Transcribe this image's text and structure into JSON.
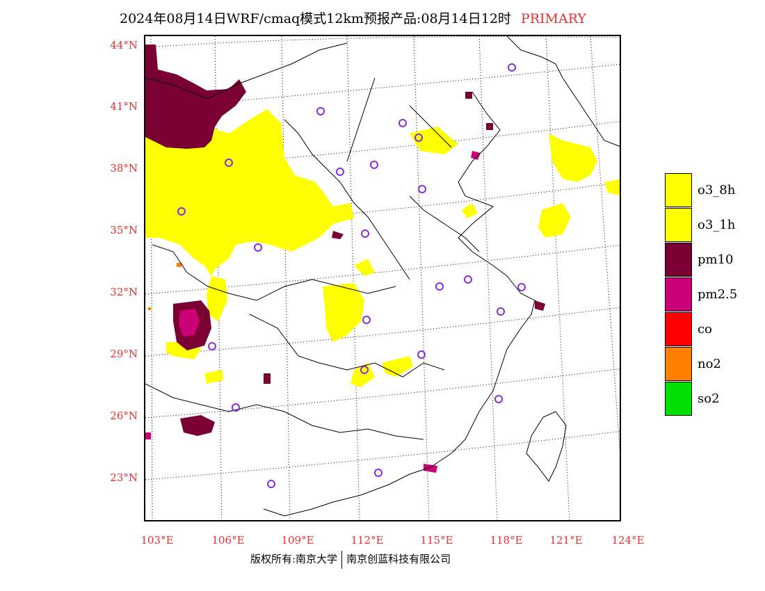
{
  "header": {
    "title": "2024年08月14日WRF/cmaq模式12km预报产品:08月14日12时",
    "primary": "PRIMARY"
  },
  "axes": {
    "lat_labels": [
      "44°N",
      "41°N",
      "38°N",
      "35°N",
      "32°N",
      "29°N",
      "26°N",
      "23°N"
    ],
    "lon_labels": [
      "103°E",
      "106°E",
      "109°E",
      "112°E",
      "115°E",
      "118°E",
      "121°E",
      "124°E"
    ]
  },
  "legend": {
    "items": [
      {
        "label": "o3_8h",
        "color": "#ffff00"
      },
      {
        "label": "o3_1h",
        "color": "#ffff00"
      },
      {
        "label": "pm10",
        "color": "#7a0033"
      },
      {
        "label": "pm2.5",
        "color": "#cc0077"
      },
      {
        "label": "co",
        "color": "#ff0000"
      },
      {
        "label": "no2",
        "color": "#ff8000"
      },
      {
        "label": "so2",
        "color": "#00e000"
      }
    ]
  },
  "footer": {
    "left": "版权所有:南京大学",
    "right": "南京创蓝科技有限公司"
  },
  "colors": {
    "axis_label": "#e8302e",
    "station": "#8a2be2"
  }
}
